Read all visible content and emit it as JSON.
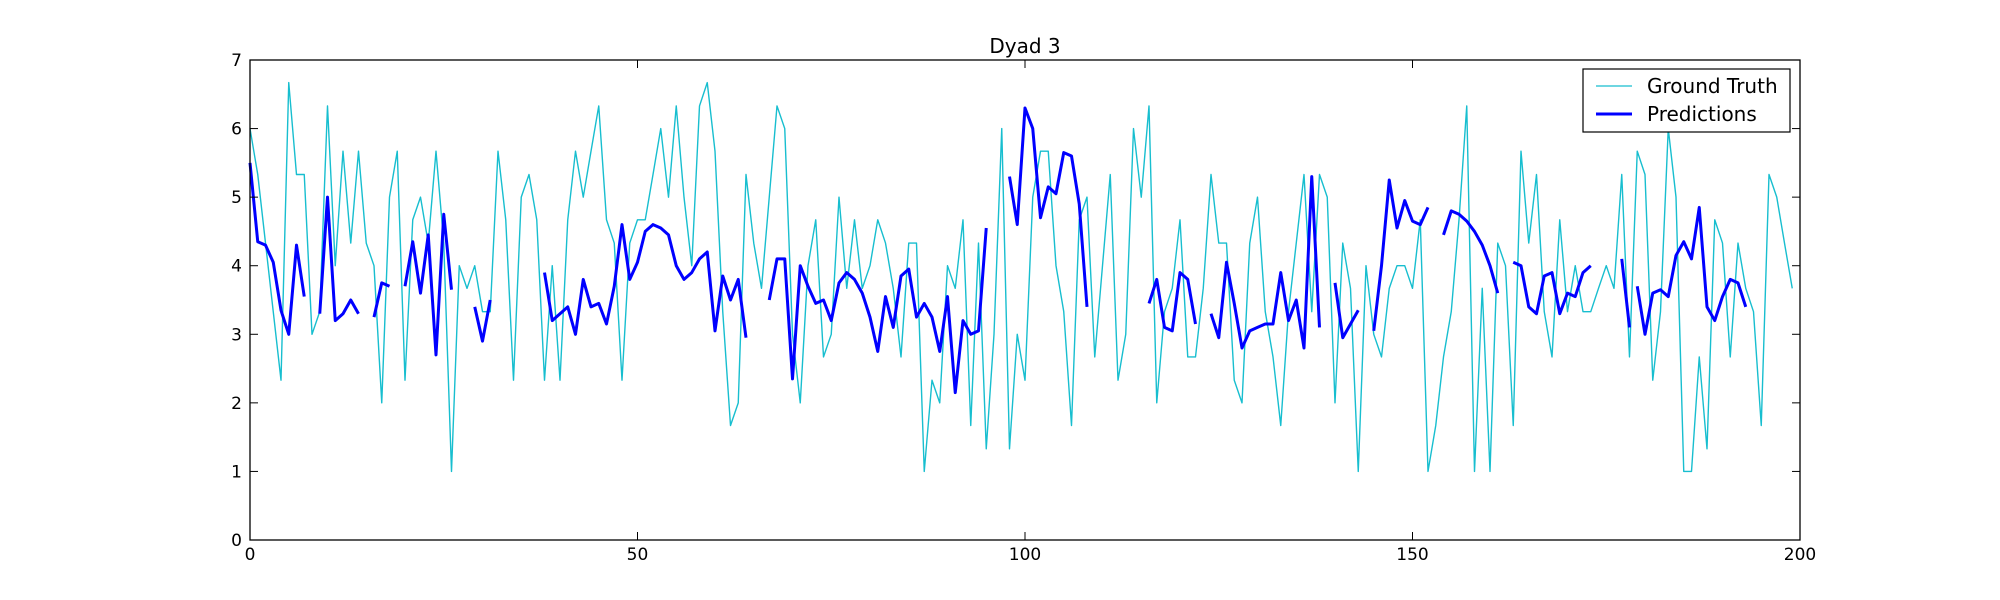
{
  "chart_data": {
    "type": "line",
    "title": "Dyad 3",
    "xlabel": "",
    "ylabel": "",
    "xlim": [
      0,
      200
    ],
    "ylim": [
      0,
      7
    ],
    "x_ticks": [
      0,
      50,
      100,
      150,
      200
    ],
    "y_ticks": [
      0,
      1,
      2,
      3,
      4,
      5,
      6,
      7
    ],
    "legend_position": "top-right",
    "series": [
      {
        "name": "Ground Truth",
        "color": "#17becf",
        "style": "thin",
        "x_start": 0,
        "values": [
          6.0,
          5.33,
          4.33,
          3.33,
          2.33,
          6.67,
          5.33,
          5.33,
          3.0,
          3.33,
          6.33,
          4.0,
          5.67,
          4.33,
          5.67,
          4.33,
          4.0,
          2.0,
          5.0,
          5.67,
          2.33,
          4.67,
          5.0,
          4.33,
          5.67,
          4.33,
          1.0,
          4.0,
          3.67,
          4.0,
          3.33,
          3.33,
          5.67,
          4.67,
          2.33,
          5.0,
          5.33,
          4.67,
          2.33,
          4.0,
          2.33,
          4.67,
          5.67,
          5.0,
          5.67,
          6.33,
          4.67,
          4.33,
          2.33,
          4.33,
          4.67,
          4.67,
          5.33,
          6.0,
          5.0,
          6.33,
          5.0,
          4.0,
          6.33,
          6.67,
          5.67,
          3.33,
          1.67,
          2.0,
          5.33,
          4.33,
          3.67,
          5.0,
          6.33,
          6.0,
          3.0,
          2.0,
          4.0,
          4.67,
          2.67,
          3.0,
          5.0,
          3.67,
          4.67,
          3.67,
          4.0,
          4.67,
          4.33,
          3.67,
          2.67,
          4.33,
          4.33,
          1.0,
          2.33,
          2.0,
          4.0,
          3.67,
          4.67,
          1.67,
          4.33,
          1.33,
          3.0,
          6.0,
          1.33,
          3.0,
          2.33,
          5.0,
          5.67,
          5.67,
          4.0,
          3.33,
          1.67,
          4.67,
          5.0,
          2.67,
          4.0,
          5.33,
          2.33,
          3.0,
          6.0,
          5.0,
          6.33,
          2.0,
          3.33,
          3.67,
          4.67,
          2.67,
          2.67,
          3.67,
          5.33,
          4.33,
          4.33,
          2.33,
          2.0,
          4.33,
          5.0,
          3.33,
          2.67,
          1.67,
          3.33,
          4.33,
          5.33,
          3.33,
          5.33,
          5.0,
          2.0,
          4.33,
          3.67,
          1.0,
          4.0,
          3.0,
          2.67,
          3.67,
          4.0,
          4.0,
          3.67,
          4.67,
          1.0,
          1.67,
          2.67,
          3.33,
          4.67,
          6.33,
          1.0,
          3.67,
          1.0,
          4.33,
          4.0,
          1.67,
          5.67,
          4.33,
          5.33,
          3.33,
          2.67,
          4.67,
          3.33,
          4.0,
          3.33,
          3.33,
          3.67,
          4.0,
          3.67,
          5.33,
          2.67,
          5.67,
          5.33,
          2.33,
          3.33,
          6.0,
          5.0,
          1.0,
          1.0,
          2.67,
          1.33,
          4.67,
          4.33,
          2.67,
          4.33,
          3.67,
          3.33,
          1.67,
          5.33,
          5.0,
          4.33,
          3.67
        ]
      },
      {
        "name": "Predictions",
        "color": "#0000ff",
        "style": "thick",
        "segments": [
          {
            "x_start": 0,
            "values": [
              5.5,
              4.35,
              4.3,
              4.05,
              3.35,
              3.0,
              4.3,
              3.55
            ]
          },
          {
            "x_start": 9,
            "values": [
              3.3,
              5.0,
              3.2,
              3.3,
              3.5,
              3.3
            ]
          },
          {
            "x_start": 16,
            "values": [
              3.25,
              3.75,
              3.7
            ]
          },
          {
            "x_start": 20,
            "values": [
              3.7,
              4.35,
              3.6,
              4.45,
              2.7,
              4.75,
              3.65
            ]
          },
          {
            "x_start": 29,
            "values": [
              3.4,
              2.9,
              3.5
            ]
          },
          {
            "x_start": 38,
            "values": [
              3.9,
              3.2,
              3.3,
              3.4,
              3.0,
              3.8,
              3.4,
              3.45,
              3.15,
              3.7,
              4.6,
              3.8,
              4.05,
              4.5,
              4.6,
              4.55,
              4.45,
              4.0,
              3.8,
              3.9,
              4.1,
              4.2,
              3.05,
              3.85,
              3.5,
              3.8,
              2.95
            ]
          },
          {
            "x_start": 67,
            "values": [
              3.5,
              4.1,
              4.1,
              2.35,
              4.0,
              3.7,
              3.45,
              3.5,
              3.2,
              3.75,
              3.9,
              3.8,
              3.6,
              3.25,
              2.75,
              3.55,
              3.1,
              3.85,
              3.95,
              3.25,
              3.45,
              3.25,
              2.75,
              3.55,
              2.15,
              3.2,
              3.0,
              3.05,
              4.55
            ]
          },
          {
            "x_start": 98,
            "values": [
              5.3,
              4.6,
              6.3,
              6.0,
              4.7,
              5.15,
              5.05,
              5.65,
              5.6,
              4.9,
              3.4
            ]
          },
          {
            "x_start": 116,
            "values": [
              3.45,
              3.8,
              3.1,
              3.05,
              3.9,
              3.8,
              3.15
            ]
          },
          {
            "x_start": 124,
            "values": [
              3.3,
              2.95,
              4.05,
              3.45,
              2.8,
              3.05,
              3.1,
              3.15,
              3.15,
              3.9,
              3.2,
              3.5,
              2.8,
              5.3,
              3.1
            ]
          },
          {
            "x_start": 140,
            "values": [
              3.75,
              2.95,
              3.15,
              3.35
            ]
          },
          {
            "x_start": 145,
            "values": [
              3.05,
              4.0,
              5.25,
              4.55,
              4.95,
              4.65,
              4.6,
              4.85
            ]
          },
          {
            "x_start": 154,
            "values": [
              4.45,
              4.8,
              4.75,
              4.65,
              4.5,
              4.3,
              4.0,
              3.6
            ]
          },
          {
            "x_start": 163,
            "values": [
              4.05,
              4.0,
              3.4,
              3.3,
              3.85,
              3.9,
              3.3,
              3.6,
              3.55,
              3.9,
              4.0
            ]
          },
          {
            "x_start": 177,
            "values": [
              4.1,
              3.1
            ]
          },
          {
            "x_start": 179,
            "values": [
              3.7,
              3.0,
              3.6,
              3.65,
              3.55,
              4.15,
              4.35,
              4.1,
              4.85,
              3.4,
              3.2,
              3.55,
              3.8,
              3.75,
              3.4
            ]
          }
        ]
      }
    ]
  }
}
